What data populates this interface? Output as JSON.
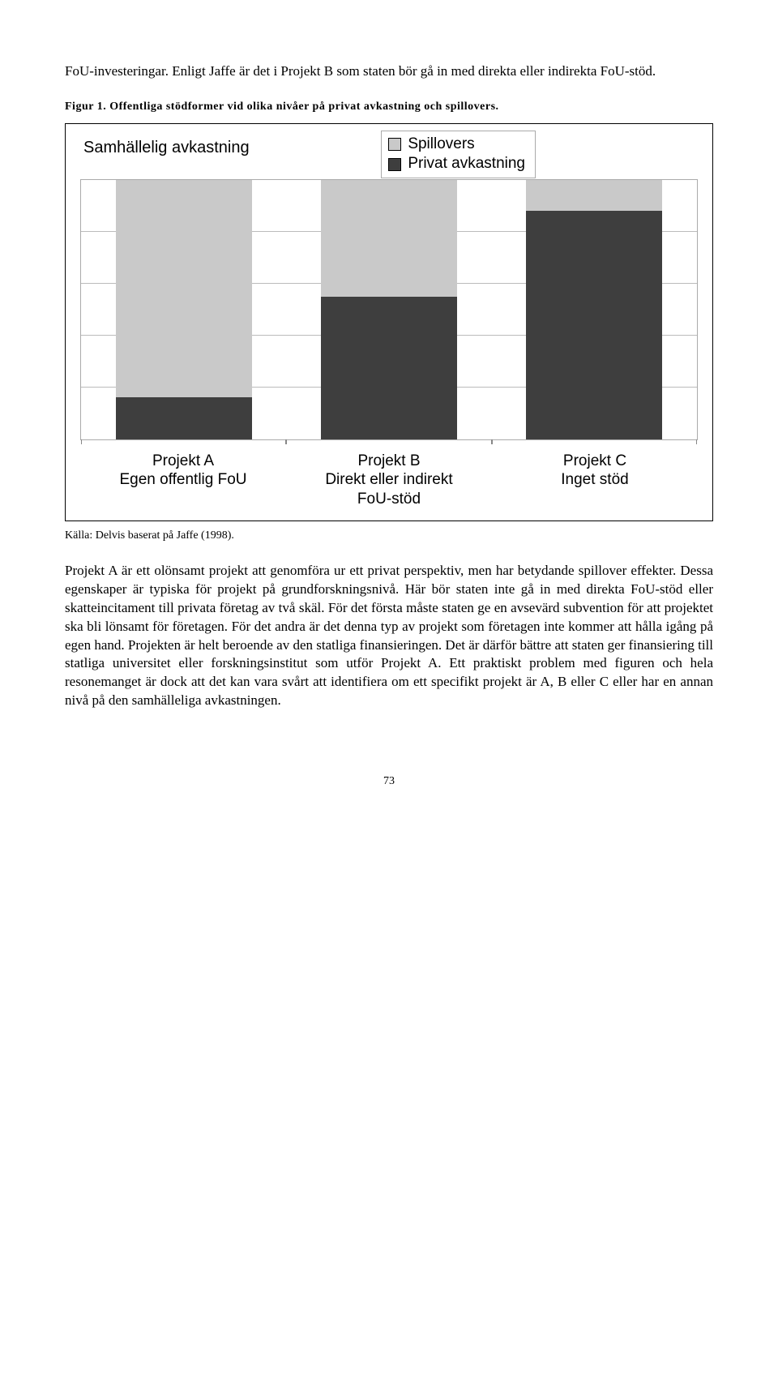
{
  "lead_paragraph": "FoU-investeringar. Enligt Jaffe är det i Projekt B som staten bör gå in med direkta eller indirekta FoU-stöd.",
  "figure_caption": "Figur 1. Offentliga stödformer vid olika nivåer på privat avkastning och spillovers.",
  "chart": {
    "type": "stacked-bar",
    "title": "Samhällelig avkastning",
    "legend": [
      {
        "label": "Spillovers",
        "color": "#c9c9c9",
        "swatch_border": "#000000"
      },
      {
        "label": "Privat avkastning",
        "color": "#3e3e3e",
        "swatch_border": "#000000"
      }
    ],
    "background_color": "#ffffff",
    "grid_color": "#bbbbbb",
    "grid_lines_pct": [
      20,
      40,
      60,
      80
    ],
    "bar_width_pct": 22,
    "bars": [
      {
        "x_center_pct": 16.7,
        "segments": [
          {
            "series": "Privat avkastning",
            "value_pct": 16,
            "color": "#3e3e3e"
          },
          {
            "series": "Spillovers",
            "value_pct": 84,
            "color": "#c9c9c9"
          }
        ],
        "label_line1": "Projekt A",
        "label_line2": "Egen offentlig FoU"
      },
      {
        "x_center_pct": 50.0,
        "segments": [
          {
            "series": "Privat avkastning",
            "value_pct": 55,
            "color": "#3e3e3e"
          },
          {
            "series": "Spillovers",
            "value_pct": 45,
            "color": "#c9c9c9"
          }
        ],
        "label_line1": "Projekt B",
        "label_line2": "Direkt eller indirekt",
        "label_line3": "FoU-stöd"
      },
      {
        "x_center_pct": 83.3,
        "segments": [
          {
            "series": "Privat avkastning",
            "value_pct": 88,
            "color": "#3e3e3e"
          },
          {
            "series": "Spillovers",
            "value_pct": 12,
            "color": "#c9c9c9"
          }
        ],
        "label_line1": "Projekt C",
        "label_line2": "Inget stöd"
      }
    ]
  },
  "source_line": "Källa: Delvis baserat på Jaffe (1998).",
  "body_paragraph": "Projekt A är ett olönsamt projekt att genomföra ur ett privat perspektiv, men har betydande spillover effekter. Dessa egenskaper är typiska för projekt på grundforskningsnivå. Här bör staten inte gå in med direkta FoU-stöd eller skatteincitament till privata företag av två skäl. För det första måste staten ge en avsevärd subvention för att projektet ska bli lönsamt för företagen. För det andra är det denna typ av projekt som företagen inte kommer att hålla igång på egen hand. Projekten är helt beroende av den statliga finansieringen. Det är därför bättre att staten ger finansiering till statliga universitet eller forskningsinstitut som utför Projekt A. Ett praktiskt problem med figuren och hela resonemanget är dock att det kan vara svårt att identifiera om ett specifikt projekt är A, B eller C eller har en annan nivå på den samhälleliga avkastningen.",
  "page_number": "73"
}
